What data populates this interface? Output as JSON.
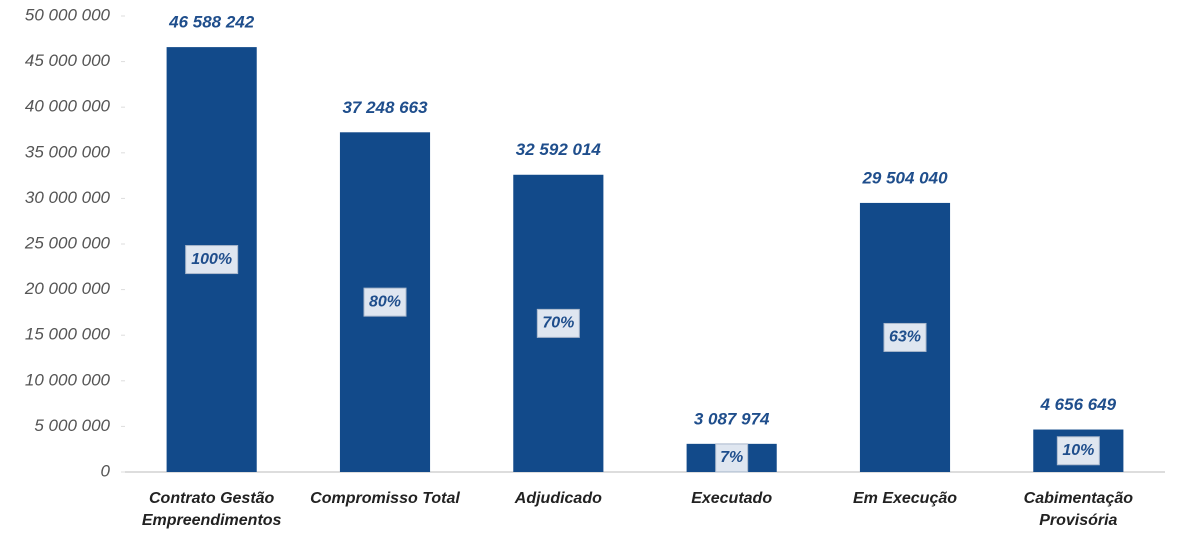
{
  "chart_data": {
    "type": "bar",
    "categories": [
      "Contrato Gestão Empreendimentos",
      "Compromisso Total",
      "Adjudicado",
      "Executado",
      "Em Execução",
      "Cabimentação Provisória"
    ],
    "values": [
      46588242,
      37248663,
      32592014,
      3087974,
      29504040,
      4656649
    ],
    "value_labels": [
      "46 588 242",
      "37 248 663",
      "32 592 014",
      "3 087 974",
      "29 504 040",
      "4 656 649"
    ],
    "shares": [
      100,
      80,
      70,
      7,
      63,
      10
    ],
    "share_labels": [
      "100%",
      "80%",
      "70%",
      "7%",
      "63%",
      "10%"
    ],
    "color": "#124a8a",
    "ylim": [
      0,
      50000000
    ],
    "yticks": [
      0,
      {
        "value": 5000000,
        "label": "5 000 000"
      },
      {
        "value": 10000000,
        "label": "10 000 000"
      },
      {
        "value": 15000000,
        "label": "15 000 000"
      },
      {
        "value": 20000000,
        "label": "20 000 000"
      },
      {
        "value": 25000000,
        "label": "25 000 000"
      },
      {
        "value": 30000000,
        "label": "30 000 000"
      },
      {
        "value": 35000000,
        "label": "35 000 000"
      },
      {
        "value": 40000000,
        "label": "40 000 000"
      },
      {
        "value": 45000000,
        "label": "45 000 000"
      },
      {
        "value": 50000000,
        "label": "50 000 000"
      }
    ],
    "grid": false
  }
}
